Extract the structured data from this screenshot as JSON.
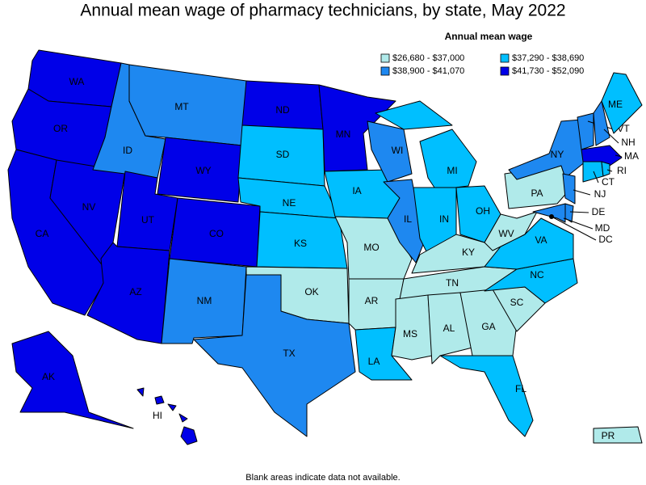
{
  "chart_data": {
    "type": "choropleth",
    "title": "Annual mean wage of pharmacy technicians, by state, May 2022",
    "legend_title": "Annual mean wage",
    "legend": [
      {
        "label": "$26,680 - $37,000",
        "color": "#b0eaea"
      },
      {
        "label": "$37,290 - $38,690",
        "color": "#00bfff"
      },
      {
        "label": "$38,900 - $41,070",
        "color": "#1e88f0"
      },
      {
        "label": "$41,730 - $52,090",
        "color": "#0000e8"
      }
    ],
    "regions": [
      {
        "label": "WA",
        "bin": 3
      },
      {
        "label": "OR",
        "bin": 3
      },
      {
        "label": "CA",
        "bin": 3
      },
      {
        "label": "NV",
        "bin": 3
      },
      {
        "label": "ID",
        "bin": 2
      },
      {
        "label": "MT",
        "bin": 2
      },
      {
        "label": "WY",
        "bin": 3
      },
      {
        "label": "UT",
        "bin": 3
      },
      {
        "label": "AZ",
        "bin": 3
      },
      {
        "label": "CO",
        "bin": 3
      },
      {
        "label": "NM",
        "bin": 2
      },
      {
        "label": "ND",
        "bin": 3
      },
      {
        "label": "SD",
        "bin": 1
      },
      {
        "label": "NE",
        "bin": 1
      },
      {
        "label": "KS",
        "bin": 1
      },
      {
        "label": "OK",
        "bin": 0
      },
      {
        "label": "TX",
        "bin": 2
      },
      {
        "label": "MN",
        "bin": 3
      },
      {
        "label": "IA",
        "bin": 1
      },
      {
        "label": "MO",
        "bin": 0
      },
      {
        "label": "AR",
        "bin": 0
      },
      {
        "label": "LA",
        "bin": 1
      },
      {
        "label": "WI",
        "bin": 2
      },
      {
        "label": "IL",
        "bin": 2
      },
      {
        "label": "MI",
        "bin": 1
      },
      {
        "label": "IN",
        "bin": 1
      },
      {
        "label": "OH",
        "bin": 1
      },
      {
        "label": "KY",
        "bin": 0
      },
      {
        "label": "TN",
        "bin": 0
      },
      {
        "label": "MS",
        "bin": 0
      },
      {
        "label": "AL",
        "bin": 0
      },
      {
        "label": "GA",
        "bin": 0
      },
      {
        "label": "FL",
        "bin": 1
      },
      {
        "label": "SC",
        "bin": 0
      },
      {
        "label": "NC",
        "bin": 1
      },
      {
        "label": "VA",
        "bin": 1
      },
      {
        "label": "WV",
        "bin": 0
      },
      {
        "label": "PA",
        "bin": 0
      },
      {
        "label": "NY",
        "bin": 2
      },
      {
        "label": "NJ",
        "bin": 2
      },
      {
        "label": "DE",
        "bin": 2
      },
      {
        "label": "MD",
        "bin": 2
      },
      {
        "label": "VT",
        "bin": 2
      },
      {
        "label": "NH",
        "bin": 2
      },
      {
        "label": "ME",
        "bin": 1
      },
      {
        "label": "MA",
        "bin": 3
      },
      {
        "label": "CT",
        "bin": 1
      },
      {
        "label": "RI",
        "bin": 1
      },
      {
        "label": "AK",
        "bin": 3
      },
      {
        "label": "HI",
        "bin": 3
      },
      {
        "label": "PR",
        "bin": 0
      },
      {
        "label": "DC",
        "bin": 3
      }
    ],
    "footnote": "Blank areas indicate data not available."
  }
}
